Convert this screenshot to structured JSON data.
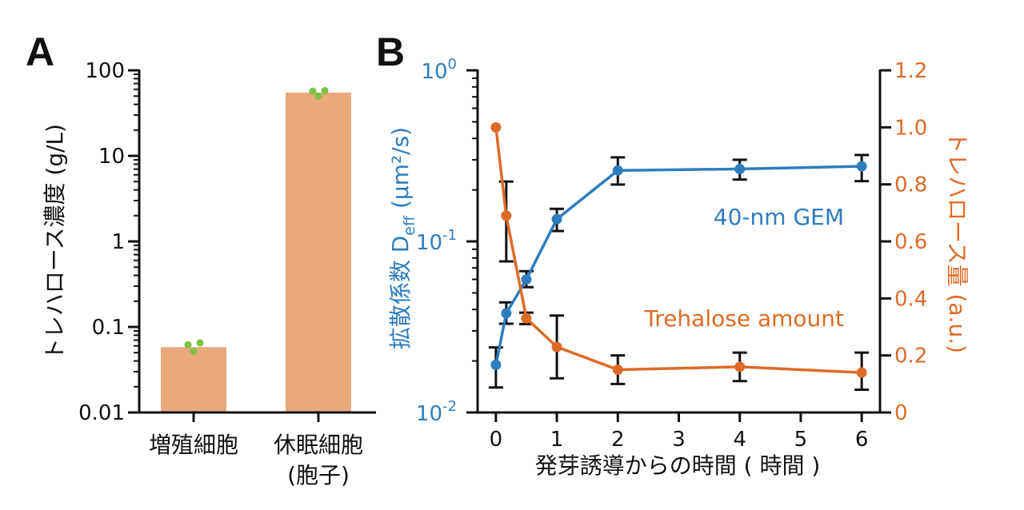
{
  "chart_data": [
    {
      "type": "bar",
      "panel_label": "A",
      "ylabel": "トレハロース濃度 (g/L)",
      "yscale": "log",
      "ylim": [
        0.01,
        100
      ],
      "yticks": [
        "0.01",
        "0.1",
        "1",
        "10",
        "100"
      ],
      "categories": [
        {
          "line1": "増殖細胞",
          "line2": ""
        },
        {
          "line1": "休眠細胞",
          "line2": "(胞子)"
        }
      ],
      "values": [
        0.058,
        55
      ],
      "points": [
        [
          0.062,
          0.052,
          0.065
        ],
        [
          57,
          50,
          58
        ]
      ],
      "colors": {
        "bar": "#eaa87c",
        "points": "#7cc242"
      }
    },
    {
      "type": "line",
      "panel_label": "B",
      "xlabel": "発芽誘導からの時間 ( 時間 )",
      "xlim": [
        -0.3,
        6.3
      ],
      "xticks": [
        "0",
        "1",
        "2",
        "3",
        "4",
        "5",
        "6"
      ],
      "y_left": {
        "label_main": "拡散係数 D",
        "label_sub": "eff",
        "label_unit": " (μm²/s)",
        "scale": "log",
        "ylim": [
          0.01,
          1
        ],
        "ticks": [
          {
            "base": "10",
            "exp": "-2"
          },
          {
            "base": "10",
            "exp": "-1"
          },
          {
            "base": "10",
            "exp": "0"
          }
        ]
      },
      "y_right": {
        "label": "トレハロース量 (a.u.)",
        "ylim": [
          0,
          1.2
        ],
        "ticks": [
          "0",
          "0.2",
          "0.4",
          "0.6",
          "0.8",
          "1.0",
          "1.2"
        ]
      },
      "series": [
        {
          "name": "40-nm GEM",
          "axis": "left",
          "color": "#2e7dbf",
          "x": [
            0,
            0.17,
            0.5,
            1,
            2,
            4,
            6
          ],
          "y": [
            0.019,
            0.038,
            0.06,
            0.135,
            0.26,
            0.265,
            0.275
          ],
          "err_low": [
            0.014,
            0.033,
            0.054,
            0.115,
            0.215,
            0.23,
            0.225
          ],
          "err_high": [
            0.024,
            0.044,
            0.067,
            0.155,
            0.31,
            0.3,
            0.32
          ]
        },
        {
          "name": "Trehalose amount",
          "axis": "right",
          "color": "#dd6b26",
          "x": [
            0,
            0.17,
            0.5,
            1,
            2,
            4,
            6
          ],
          "y": [
            1.0,
            0.69,
            0.33,
            0.23,
            0.15,
            0.16,
            0.14
          ],
          "err_low": [
            1.0,
            0.53,
            0.31,
            0.12,
            0.1,
            0.11,
            0.08
          ],
          "err_high": [
            1.0,
            0.81,
            0.35,
            0.34,
            0.2,
            0.21,
            0.21
          ]
        }
      ]
    }
  ]
}
